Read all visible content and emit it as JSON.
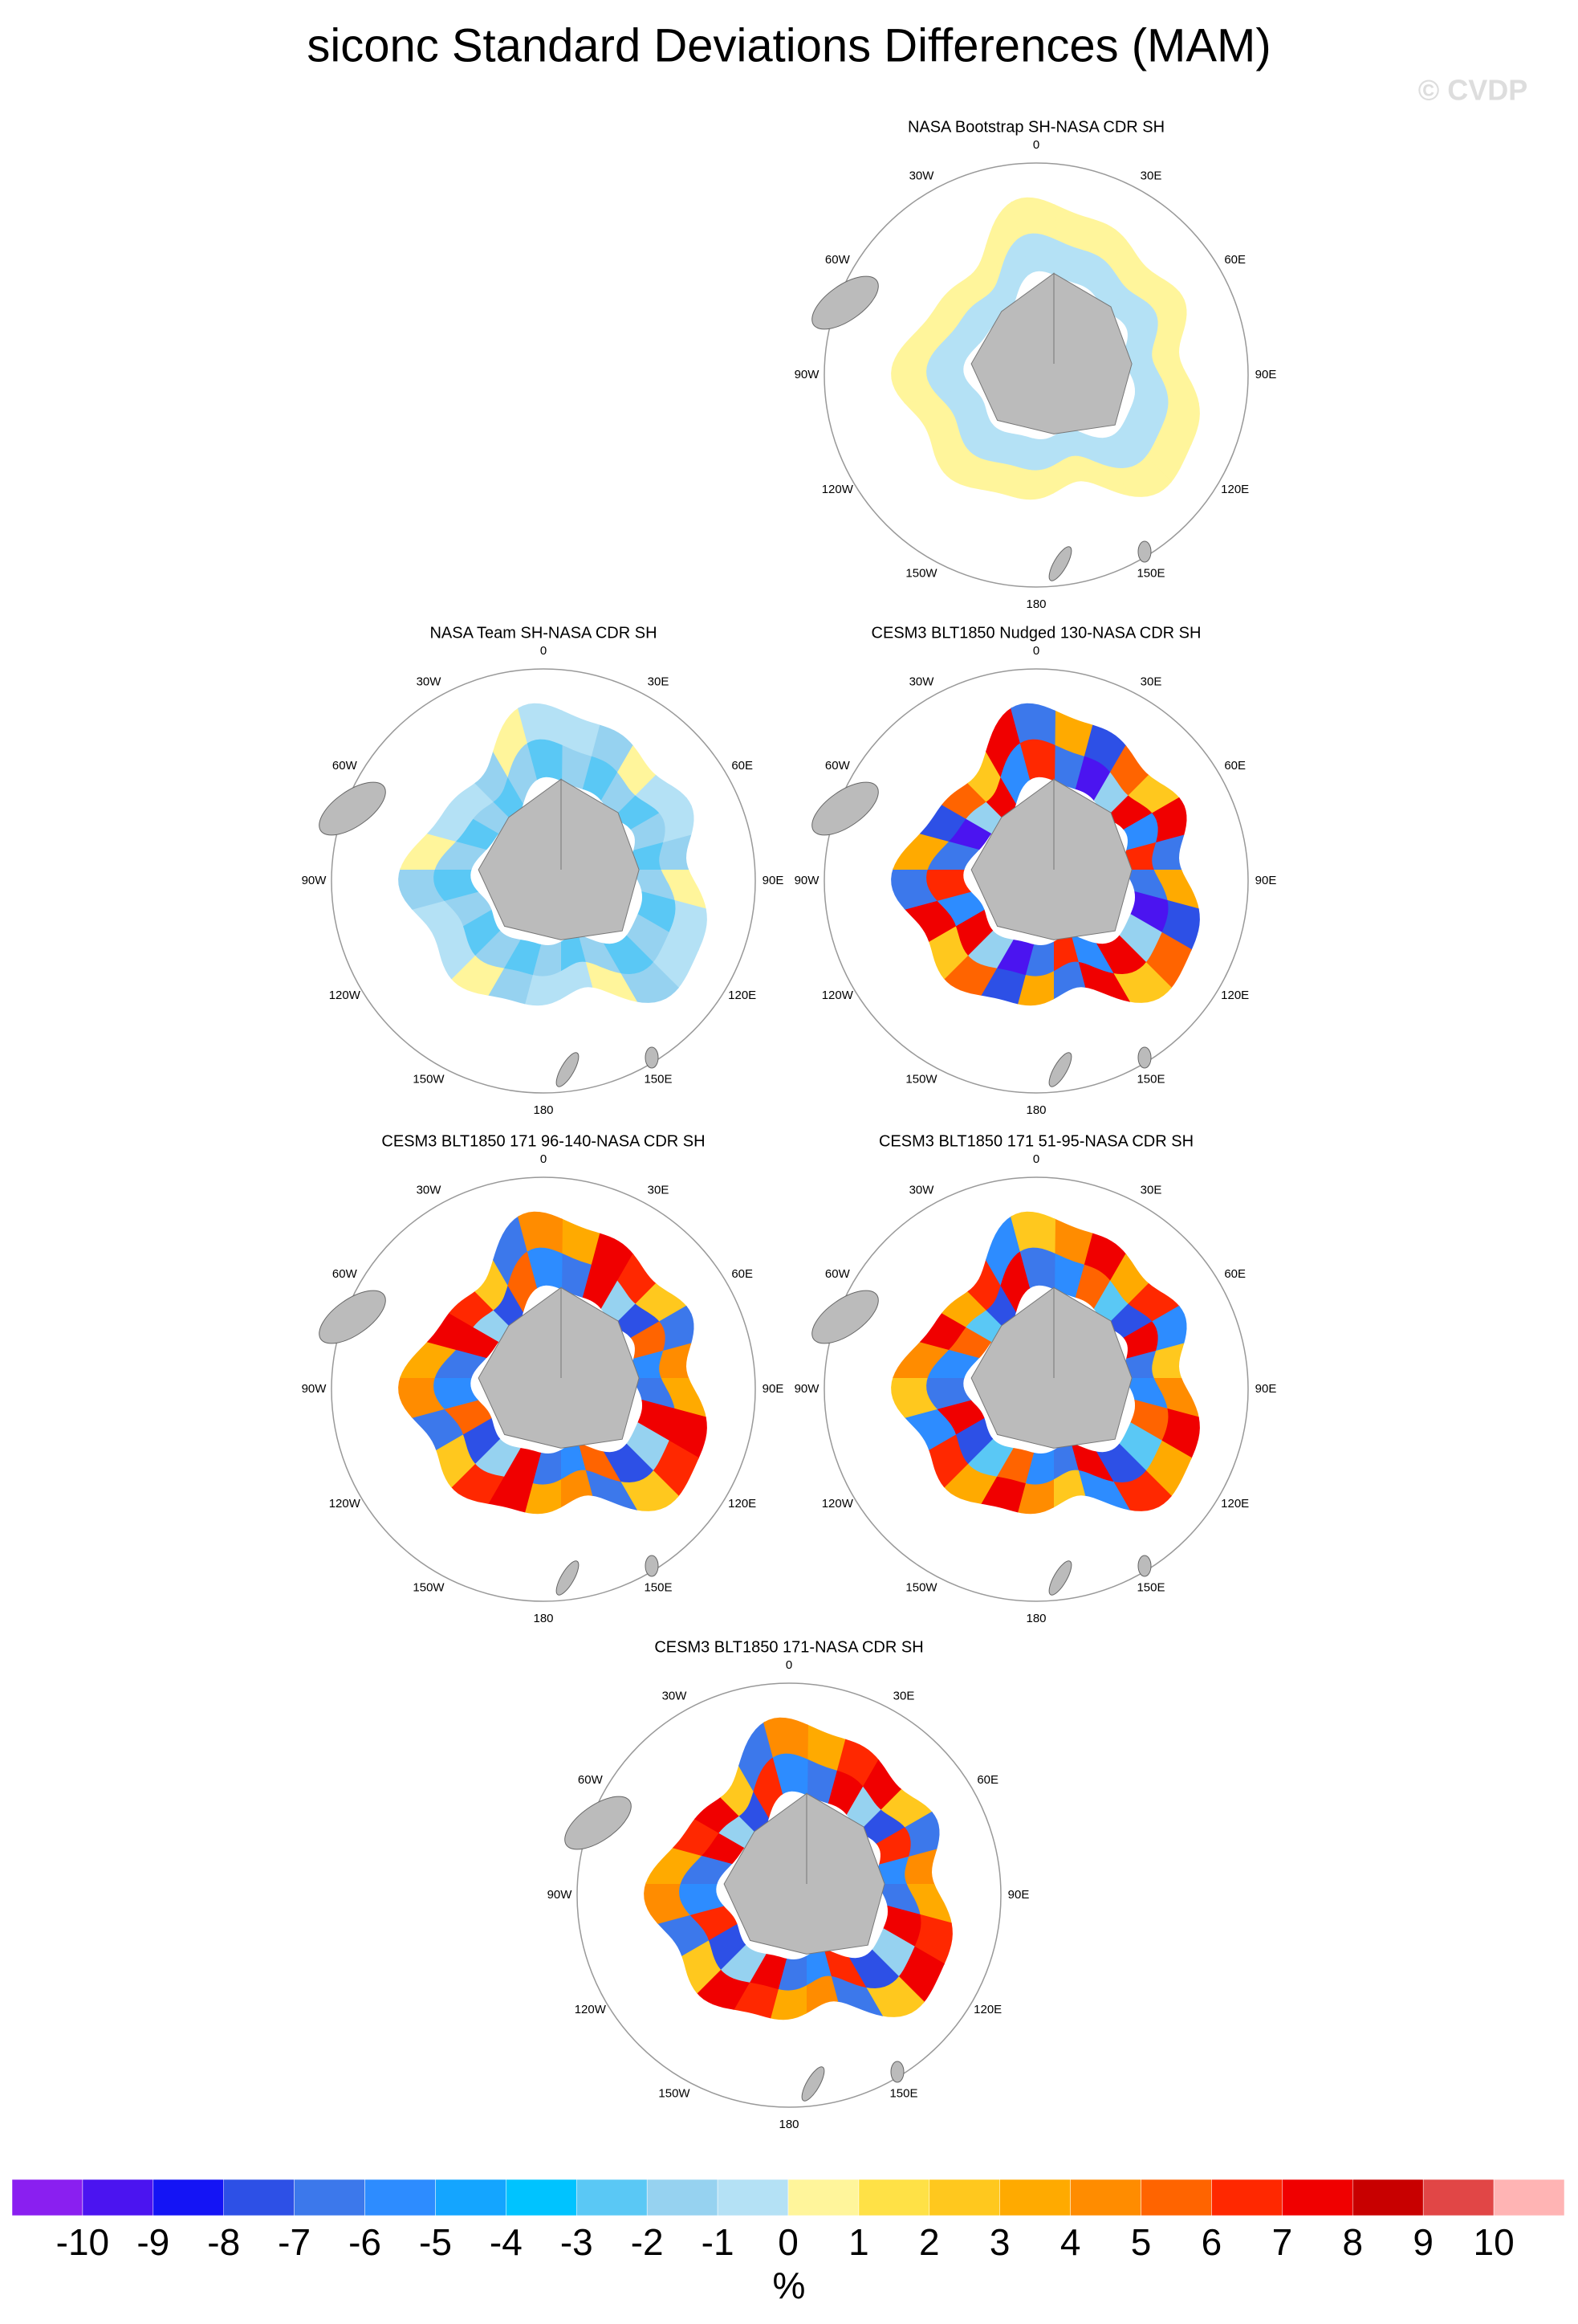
{
  "title": "siconc Standard Deviations Differences (MAM)",
  "watermark": "© CVDP",
  "longitude_labels": [
    "0",
    "30E",
    "60E",
    "90E",
    "120E",
    "150E",
    "180",
    "150W",
    "120W",
    "90W",
    "60W",
    "30W"
  ],
  "panels": [
    {
      "title": "NASA Bootstrap SH-NASA CDR SH"
    },
    {
      "title": "NASA Team SH-NASA CDR SH"
    },
    {
      "title": "CESM3 BLT1850 Nudged 130-NASA CDR SH"
    },
    {
      "title": "CESM3 BLT1850 171 96-140-NASA CDR SH"
    },
    {
      "title": "CESM3 BLT1850 171 51-95-NASA CDR SH"
    },
    {
      "title": "CESM3 BLT1850 171-NASA CDR SH"
    }
  ],
  "colorbar": {
    "levels": [
      -10,
      -9,
      -8,
      -7,
      -6,
      -5,
      -4,
      -3,
      -2,
      -1,
      0,
      1,
      2,
      3,
      4,
      5,
      6,
      7,
      8,
      9,
      10
    ],
    "colors": [
      "#8a1ff0",
      "#4b14f0",
      "#1414f5",
      "#2d50e6",
      "#3c78eb",
      "#2d8cff",
      "#14a5ff",
      "#00c3ff",
      "#5ac8f5",
      "#96d2f0",
      "#b4e1f5",
      "#fff59b",
      "#ffe146",
      "#ffc81e",
      "#ffaa00",
      "#ff8c00",
      "#ff6400",
      "#ff2800",
      "#f00000",
      "#c80000",
      "#e14646",
      "#ffb4b4"
    ],
    "units": "%"
  }
}
